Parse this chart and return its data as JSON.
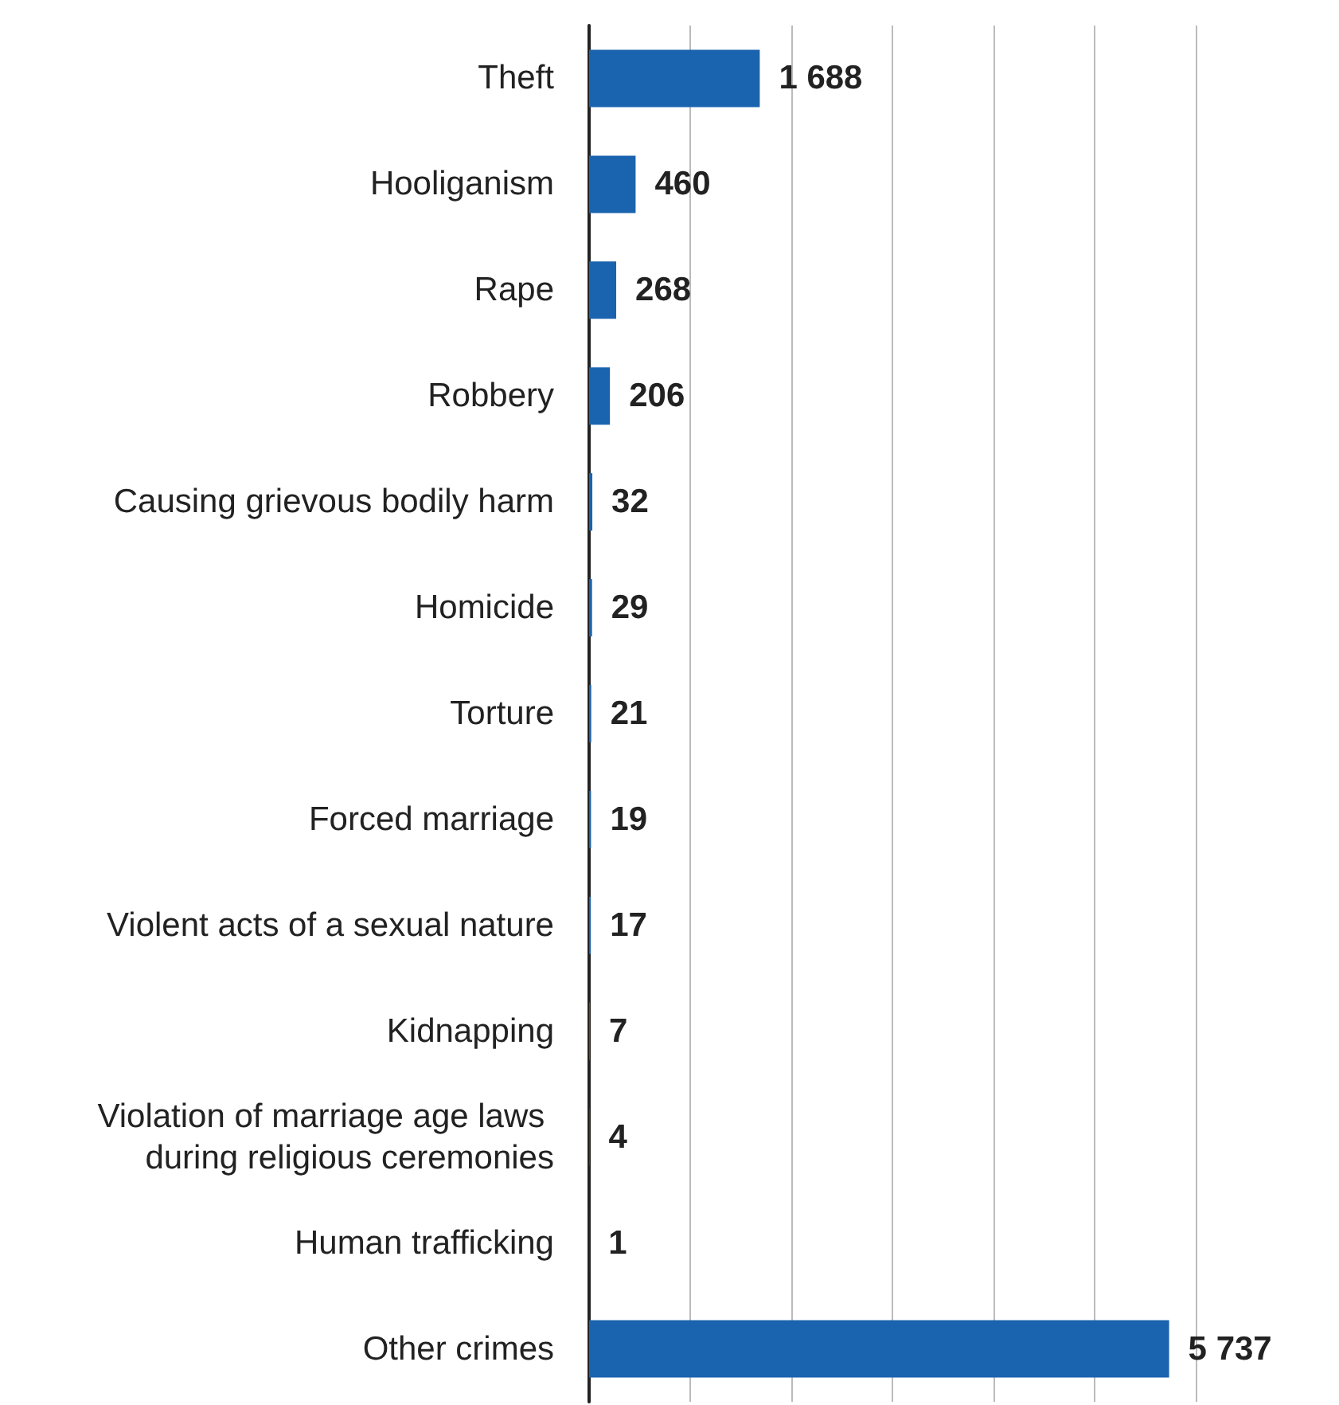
{
  "chart_data": {
    "type": "bar",
    "orientation": "horizontal",
    "categories": [
      "Theft",
      "Hooliganism",
      "Rape",
      "Robbery",
      "Causing grievous bodily harm",
      "Homicide",
      "Torture",
      "Forced marriage",
      "Violent acts of a sexual nature",
      "Kidnapping",
      "Violation of marriage age laws during religious ceremonies",
      "Human trafficking",
      "Other crimes"
    ],
    "values": [
      1688,
      460,
      268,
      206,
      32,
      29,
      21,
      19,
      17,
      7,
      4,
      1,
      5737
    ],
    "value_labels": [
      "1 688",
      "460",
      "268",
      "206",
      "32",
      "29",
      "21",
      "19",
      "17",
      "7",
      "4",
      "1",
      "5 737"
    ],
    "color": "#1a63ae",
    "xlim": [
      0,
      6000
    ],
    "xticks": [
      {
        "value": 0,
        "label": null
      },
      {
        "value": 1000,
        "label": null
      },
      {
        "value": 2000,
        "label": null
      },
      {
        "value": 3000,
        "label": null
      },
      {
        "value": 4000,
        "label": null
      },
      {
        "value": 5000,
        "label": null
      },
      {
        "value": 6000,
        "label": null
      }
    ],
    "grid": "x",
    "tick_labels": "y"
  }
}
